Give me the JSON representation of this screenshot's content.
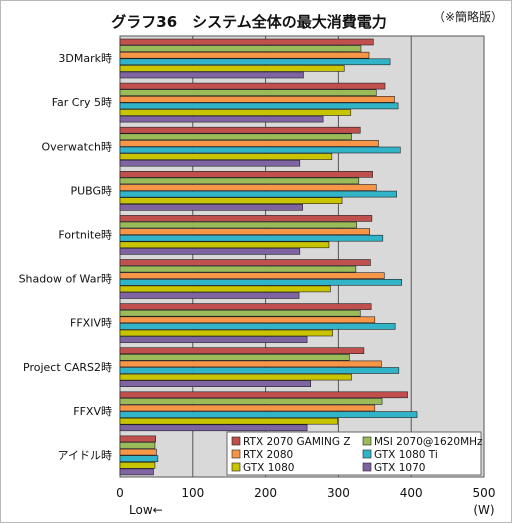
{
  "chart_data": {
    "type": "bar",
    "orientation": "horizontal",
    "title": "グラフ36　システム全体の最大消費電力",
    "note": "（※簡略版）",
    "xlabel_left": "Low←",
    "xlabel_unit": "(W)",
    "xlim": [
      0,
      500
    ],
    "xticks": [
      0,
      100,
      200,
      300,
      400,
      500
    ],
    "grid": true,
    "legend_position": "bottom-right",
    "categories": [
      "3DMark時",
      "Far Cry 5時",
      "Overwatch時",
      "PUBG時",
      "Fortnite時",
      "Shadow of War時",
      "FFXIV時",
      "Project CARS2時",
      "FFXV時",
      "アイドル時"
    ],
    "series": [
      {
        "name": "RTX 2070 GAMING Z",
        "color": "#c0504d",
        "values": [
          348,
          364,
          330,
          347,
          346,
          344,
          345,
          335,
          395,
          49
        ]
      },
      {
        "name": "MSI 2070@1620MHz",
        "color": "#9bbb59",
        "values": [
          331,
          352,
          318,
          328,
          325,
          324,
          330,
          315,
          360,
          48
        ]
      },
      {
        "name": "RTX 2080",
        "color": "#f79646",
        "values": [
          342,
          377,
          355,
          352,
          343,
          363,
          350,
          359,
          350,
          50
        ]
      },
      {
        "name": "GTX 1080 Ti",
        "color": "#31b4c8",
        "values": [
          371,
          382,
          385,
          380,
          361,
          387,
          378,
          383,
          408,
          52
        ]
      },
      {
        "name": "GTX 1080",
        "color": "#c8c400",
        "values": [
          308,
          317,
          291,
          305,
          287,
          289,
          292,
          318,
          299,
          48
        ]
      },
      {
        "name": "GTX 1070",
        "color": "#8064a2",
        "values": [
          252,
          279,
          247,
          251,
          247,
          246,
          257,
          262,
          257,
          46
        ]
      }
    ]
  }
}
